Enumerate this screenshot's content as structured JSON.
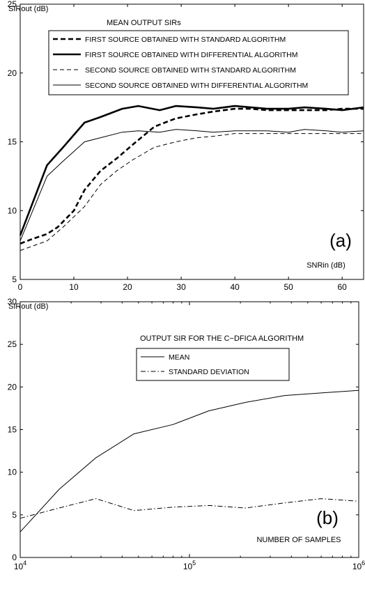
{
  "chart_data": [
    {
      "type": "line",
      "title": "MEAN OUTPUT SIRs",
      "ylabel": "SIRout (dB)",
      "xlabel": "SNRin (dB)",
      "panel_label": "(a)",
      "xlim": [
        0,
        64
      ],
      "ylim": [
        5,
        25
      ],
      "xticks": [
        "0",
        "10",
        "20",
        "30",
        "40",
        "50",
        "60"
      ],
      "yticks": [
        "5",
        "10",
        "15",
        "20",
        "25"
      ],
      "grid": false,
      "legend": "top-right",
      "series": [
        {
          "name": "FIRST SOURCE OBTAINED WITH STANDARD ALGORITHM",
          "style": "thick-dashed",
          "x": [
            0,
            2,
            5,
            7,
            10,
            12,
            15,
            18,
            21,
            25,
            29,
            33,
            36,
            40,
            43,
            46,
            50,
            53,
            57,
            60,
            64
          ],
          "y": [
            7.6,
            7.9,
            8.3,
            8.8,
            10.0,
            11.5,
            12.9,
            13.8,
            14.8,
            16.1,
            16.7,
            17.0,
            17.2,
            17.4,
            17.4,
            17.3,
            17.3,
            17.3,
            17.3,
            17.4,
            17.4
          ]
        },
        {
          "name": "FIRST SOURCE OBTAINED WITH DIFFERENTIAL ALGORITHM",
          "style": "thick-solid",
          "x": [
            0,
            5,
            8,
            12,
            15,
            19,
            22,
            26,
            29,
            33,
            36,
            40,
            43,
            46,
            50,
            53,
            57,
            60,
            64
          ],
          "y": [
            8.2,
            13.3,
            14.6,
            16.4,
            16.8,
            17.4,
            17.6,
            17.3,
            17.6,
            17.5,
            17.4,
            17.6,
            17.5,
            17.4,
            17.4,
            17.5,
            17.4,
            17.3,
            17.5
          ]
        },
        {
          "name": "SECOND SOURCE OBTAINED WITH STANDARD ALGORITHM",
          "style": "thin-dashed",
          "x": [
            0,
            5,
            8,
            12,
            15,
            18,
            21,
            25,
            29,
            33,
            36,
            40,
            43,
            46,
            50,
            53,
            57,
            60,
            64
          ],
          "y": [
            7.1,
            7.8,
            8.8,
            10.3,
            11.9,
            12.9,
            13.7,
            14.6,
            15.0,
            15.3,
            15.4,
            15.6,
            15.6,
            15.6,
            15.6,
            15.6,
            15.6,
            15.6,
            15.6
          ]
        },
        {
          "name": "SECOND SOURCE OBTAINED WITH DIFFERENTIAL ALGORITHM",
          "style": "thin-solid",
          "x": [
            0,
            5,
            8,
            12,
            15,
            19,
            22,
            26,
            29,
            33,
            36,
            40,
            43,
            46,
            50,
            53,
            57,
            60,
            64
          ],
          "y": [
            7.8,
            12.5,
            13.6,
            15.0,
            15.3,
            15.7,
            15.8,
            15.7,
            15.9,
            15.8,
            15.7,
            15.8,
            15.8,
            15.8,
            15.7,
            15.9,
            15.8,
            15.7,
            15.8
          ]
        }
      ]
    },
    {
      "type": "line",
      "title": "OUTPUT SIR FOR THE C−DFICA ALGORITHM",
      "ylabel": "SIRout (dB)",
      "xlabel": "NUMBER OF SAMPLES",
      "panel_label": "(b)",
      "xscale": "log",
      "xlim": [
        10000,
        1000000
      ],
      "ylim": [
        0,
        30
      ],
      "xticks": [
        {
          "value": 10000,
          "base": "10",
          "exp": "4"
        },
        {
          "value": 100000,
          "base": "10",
          "exp": "5"
        },
        {
          "value": 1000000,
          "base": "10",
          "exp": "6"
        }
      ],
      "yticks": [
        "0",
        "5",
        "10",
        "15",
        "20",
        "25",
        "30"
      ],
      "grid": false,
      "legend": "top-left",
      "series": [
        {
          "name": "MEAN",
          "style": "solid",
          "x": [
            10000,
            17000,
            28000,
            47000,
            80000,
            130000,
            215000,
            365000,
            600000,
            1000000
          ],
          "y": [
            3.0,
            8.0,
            11.7,
            14.5,
            15.6,
            17.2,
            18.2,
            19.0,
            19.3,
            19.6
          ]
        },
        {
          "name": "STANDARD DEVIATION",
          "style": "dash-dot",
          "x": [
            10000,
            17000,
            28000,
            47000,
            80000,
            130000,
            215000,
            365000,
            600000,
            1000000
          ],
          "y": [
            4.6,
            5.8,
            6.9,
            5.5,
            5.9,
            6.1,
            5.8,
            6.4,
            6.9,
            6.6
          ]
        }
      ]
    }
  ]
}
